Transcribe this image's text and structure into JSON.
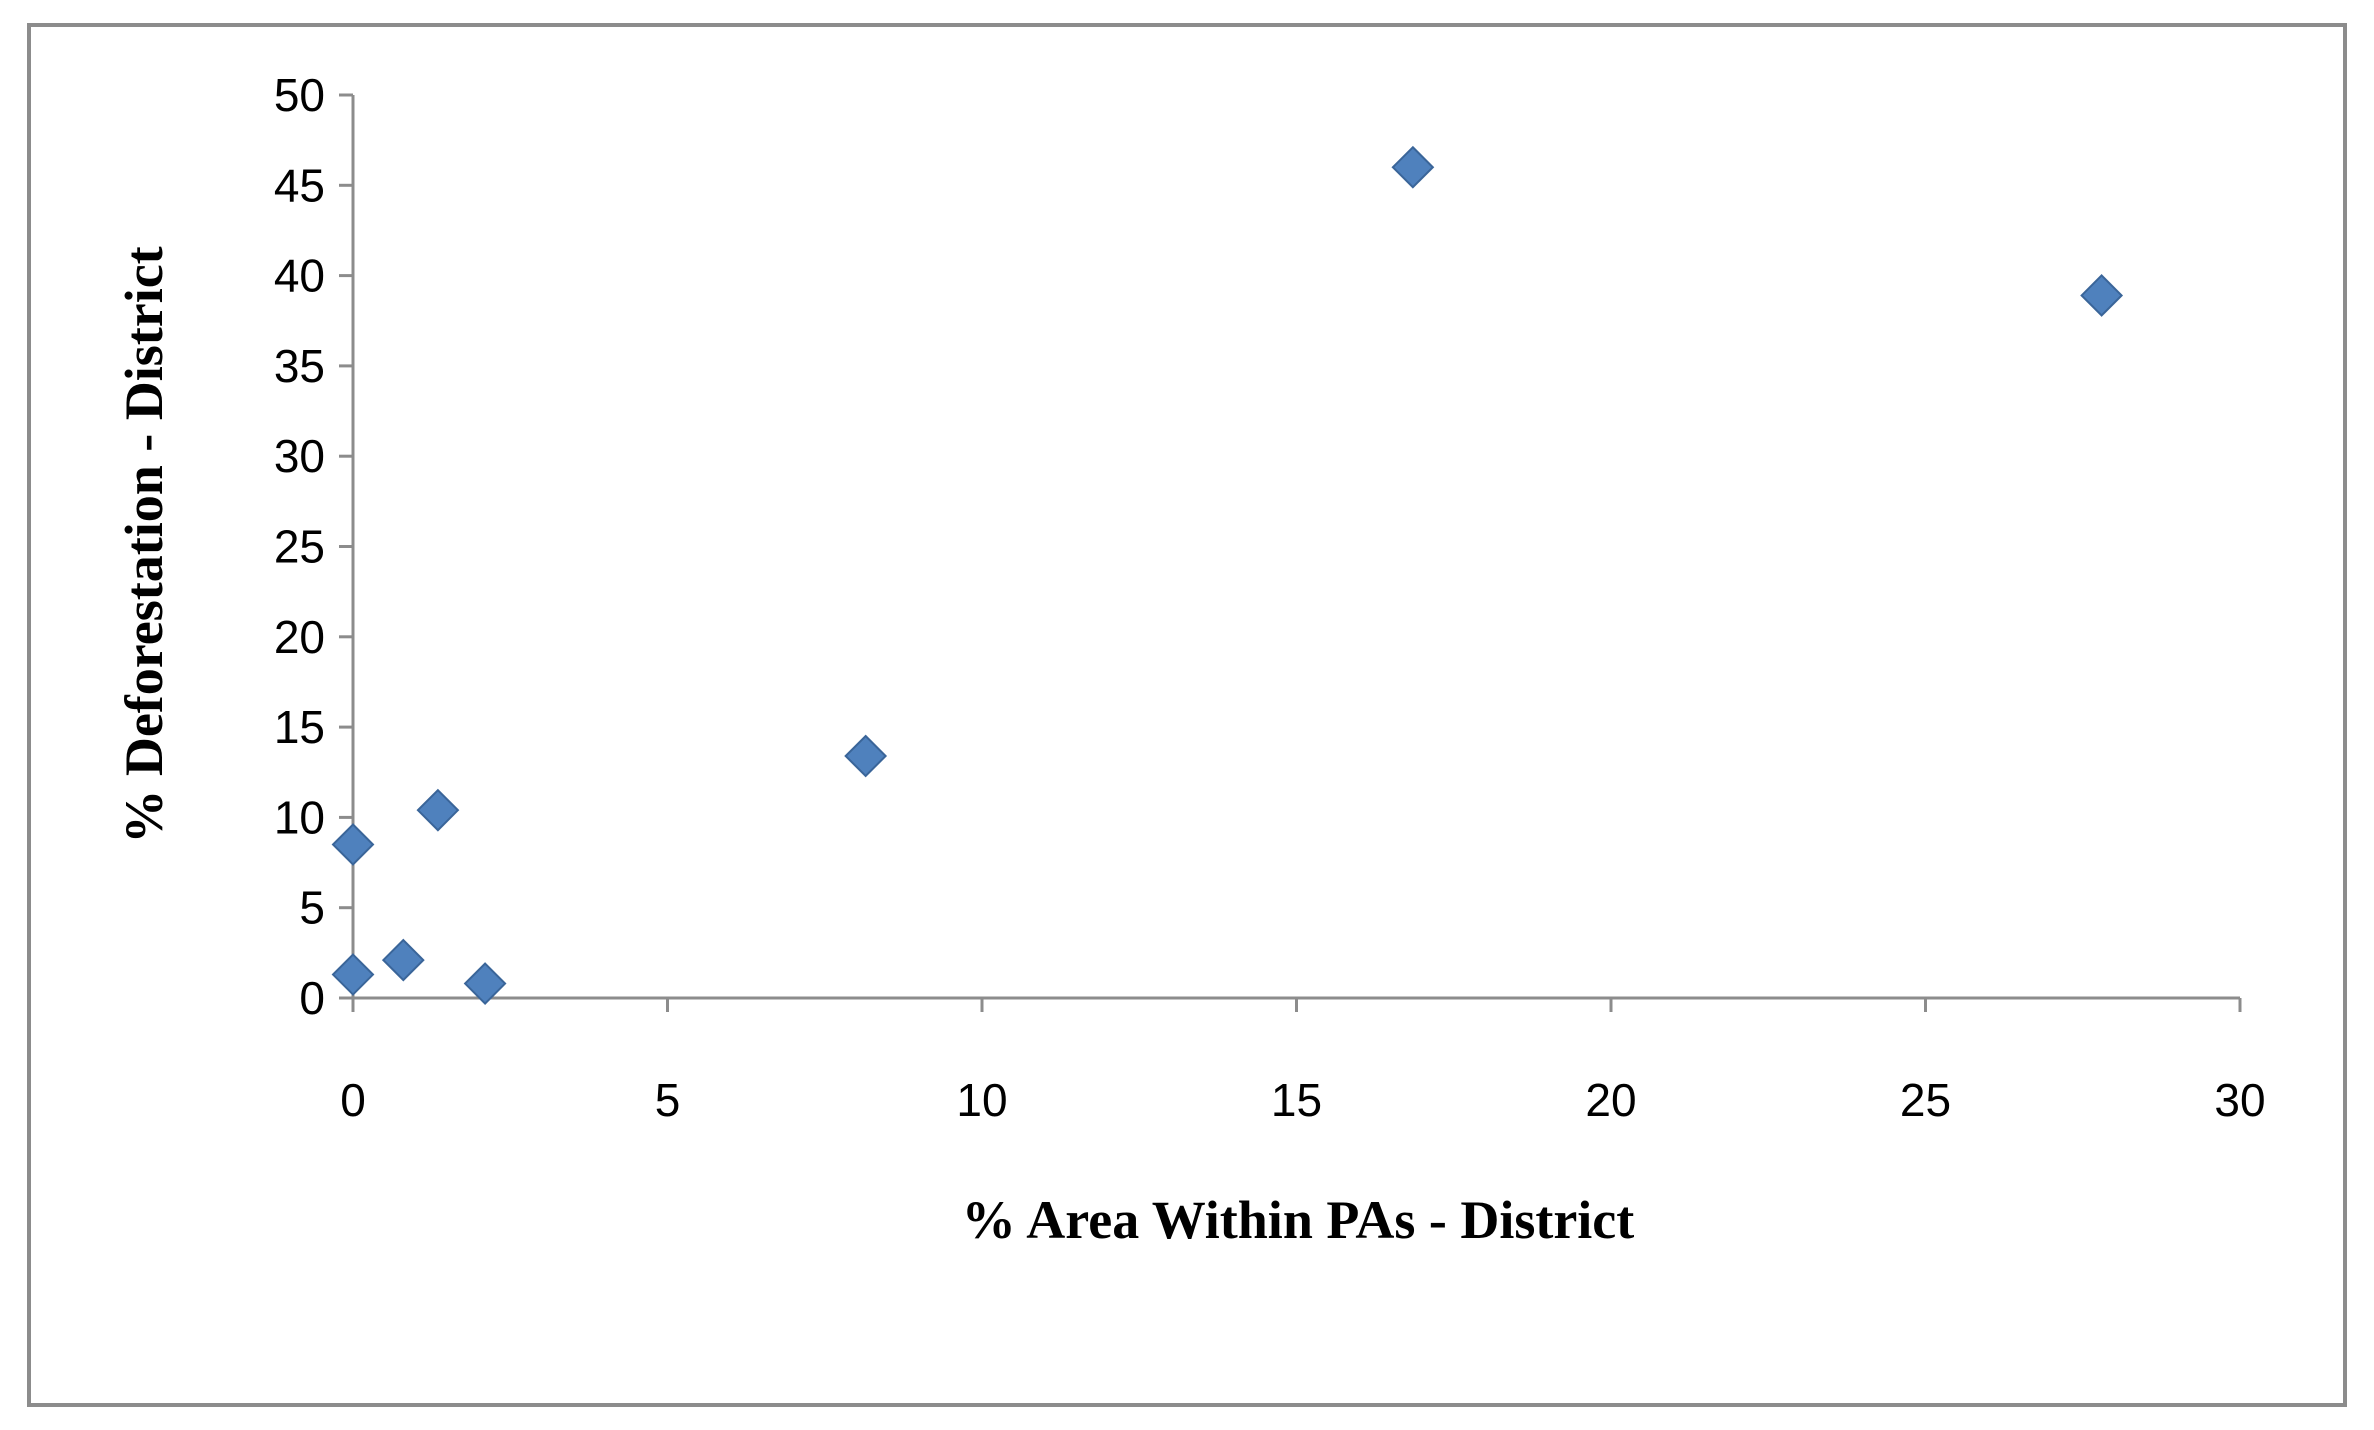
{
  "chart_data": {
    "type": "scatter",
    "title": "",
    "xlabel": "% Area Within PAs - District",
    "ylabel": "% Deforestation - District",
    "xlim": [
      0,
      30
    ],
    "ylim": [
      0,
      50
    ],
    "x_ticks": [
      0,
      5,
      10,
      15,
      20,
      25,
      30
    ],
    "y_ticks": [
      0,
      5,
      10,
      15,
      20,
      25,
      30,
      35,
      40,
      45,
      50
    ],
    "grid": false,
    "legend": "none",
    "marker": "diamond",
    "series": [
      {
        "points": [
          {
            "x": 0,
            "y": 8.5
          },
          {
            "x": 0,
            "y": 1.3
          },
          {
            "x": 0.8,
            "y": 2.1
          },
          {
            "x": 1.35,
            "y": 10.4
          },
          {
            "x": 2.1,
            "y": 0.8
          },
          {
            "x": 8.15,
            "y": 13.4
          },
          {
            "x": 16.85,
            "y": 46.0
          },
          {
            "x": 27.8,
            "y": 38.9
          }
        ]
      }
    ],
    "colors": {
      "marker": "#4F81BD",
      "marker_edge": "#3A6599",
      "axis": "#8c8c8c"
    }
  }
}
